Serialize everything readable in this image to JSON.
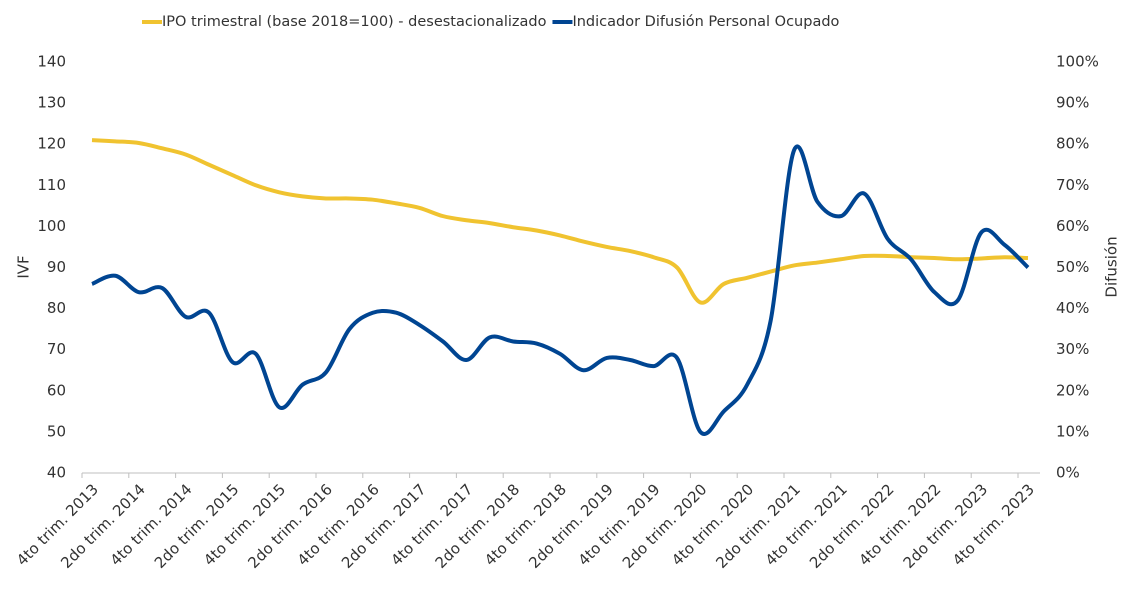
{
  "chart_data": {
    "type": "line",
    "categories": [
      "4to trim. 2013",
      null,
      "2do trim. 2014",
      null,
      "4to trim. 2014",
      null,
      "2do trim. 2015",
      null,
      "4to trim. 2015",
      null,
      "2do trim. 2016",
      null,
      "4to trim. 2016",
      null,
      "2do trim. 2017",
      null,
      "4to trim. 2017",
      null,
      "2do trim. 2018",
      null,
      "4to trim. 2018",
      null,
      "2do trim. 2019",
      null,
      "4to trim. 2019",
      null,
      "2do trim. 2020",
      null,
      "4to trim. 2020",
      null,
      "2do trim. 2021",
      null,
      "4to trim. 2021",
      null,
      "2do trim. 2022",
      null,
      "4to trim. 2022",
      null,
      "2do trim. 2023",
      null,
      "4to trim. 2023"
    ],
    "series": [
      {
        "name": "IPO trimestral (base 2018=100) - desestacionalizado",
        "color": "#f0c330",
        "values": [
          121,
          120.7,
          120.3,
          119,
          117.5,
          115,
          112.5,
          110,
          108.3,
          107.3,
          106.8,
          106.8,
          106.5,
          105.6,
          104.5,
          102.5,
          101.5,
          100.8,
          99.8,
          99,
          97.8,
          96.3,
          95,
          94,
          92.5,
          90,
          81.5,
          86,
          87.5,
          89,
          90.5,
          91.2,
          92,
          92.8,
          92.8,
          92.5,
          92.3,
          92,
          92.2,
          92.5,
          92.3
        ]
      },
      {
        "name": "Indicador Difusión Personal Ocupado",
        "color": "#004592",
        "axis": "y2",
        "values": [
          46,
          48,
          44,
          45,
          38,
          39,
          27,
          29,
          16,
          21.5,
          24.5,
          35,
          39,
          39,
          36,
          32,
          27.5,
          33,
          32,
          31.5,
          29,
          25,
          28,
          27.5,
          26,
          28,
          10,
          15,
          21.5,
          37,
          78.5,
          66,
          62.5,
          68,
          57,
          52,
          44,
          42,
          58.5,
          55.5,
          50
        ]
      }
    ],
    "ylabel": "IVF",
    "y2label": "Difusión",
    "ylim": [
      40,
      140
    ],
    "yticks": [
      40,
      50,
      60,
      70,
      80,
      90,
      100,
      110,
      120,
      130,
      140
    ],
    "y2lim": [
      0,
      100
    ],
    "y2ticks": [
      {
        "value": 0,
        "label": "0%"
      },
      {
        "value": 10,
        "label": "10%"
      },
      {
        "value": 20,
        "label": "20%"
      },
      {
        "value": 30,
        "label": "30%"
      },
      {
        "value": 40,
        "label": "40%"
      },
      {
        "value": 50,
        "label": "50%"
      },
      {
        "value": 60,
        "label": "60%"
      },
      {
        "value": 70,
        "label": "70%"
      },
      {
        "value": 80,
        "label": "80%"
      },
      {
        "value": 90,
        "label": "90%"
      },
      {
        "value": 100,
        "label": "100%"
      }
    ],
    "grid": false,
    "legend": "top"
  }
}
